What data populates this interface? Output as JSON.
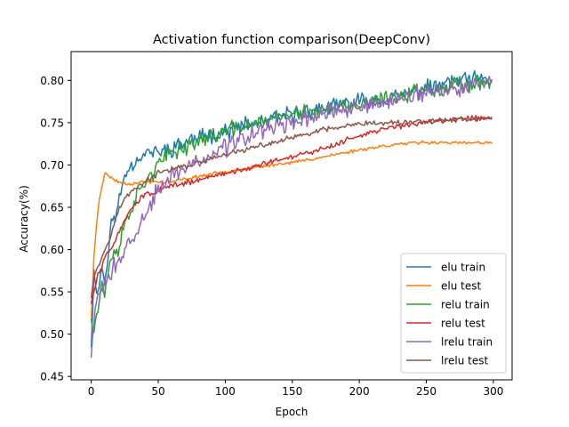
{
  "chart_data": {
    "type": "line",
    "title": "Activation function comparison(DeepConv)",
    "xlabel": "Epoch",
    "ylabel": "Accuracy(%)",
    "xlim": [
      -15,
      314
    ],
    "ylim": [
      0.446,
      0.834
    ],
    "xticks": [
      0,
      50,
      100,
      150,
      200,
      250,
      300
    ],
    "yticks": [
      0.45,
      0.5,
      0.55,
      0.6,
      0.65,
      0.7,
      0.75,
      0.8
    ],
    "ytick_labels": [
      "0.45",
      "0.50",
      "0.55",
      "0.60",
      "0.65",
      "0.70",
      "0.75",
      "0.80"
    ],
    "grid": false,
    "legend_position": "lower-right",
    "epochs": 300,
    "series": [
      {
        "name": "elu train",
        "color": "#1f77b4",
        "x": [
          0,
          2,
          5,
          8,
          10,
          15,
          20,
          25,
          30,
          40,
          50,
          60,
          75,
          100,
          125,
          150,
          175,
          200,
          225,
          250,
          275,
          299
        ],
        "y": [
          0.49,
          0.57,
          0.55,
          0.58,
          0.56,
          0.63,
          0.65,
          0.69,
          0.7,
          0.715,
          0.715,
          0.72,
          0.73,
          0.74,
          0.75,
          0.76,
          0.767,
          0.775,
          0.78,
          0.79,
          0.8,
          0.8
        ],
        "noise": 0.012,
        "seed": 11
      },
      {
        "name": "elu test",
        "color": "#ff7f0e",
        "x": [
          0,
          2,
          4,
          6,
          8,
          10,
          15,
          20,
          25,
          30,
          40,
          50,
          60,
          75,
          100,
          125,
          150,
          175,
          200,
          225,
          250,
          275,
          299
        ],
        "y": [
          0.52,
          0.59,
          0.63,
          0.66,
          0.675,
          0.69,
          0.685,
          0.68,
          0.678,
          0.678,
          0.68,
          0.68,
          0.68,
          0.685,
          0.692,
          0.698,
          0.703,
          0.71,
          0.718,
          0.724,
          0.727,
          0.726,
          0.726
        ],
        "noise": 0.0025,
        "seed": 23
      },
      {
        "name": "relu train",
        "color": "#2ca02c",
        "x": [
          0,
          2,
          5,
          8,
          10,
          15,
          20,
          25,
          30,
          40,
          50,
          60,
          75,
          100,
          125,
          150,
          175,
          200,
          225,
          250,
          275,
          299
        ],
        "y": [
          0.52,
          0.51,
          0.53,
          0.56,
          0.55,
          0.59,
          0.6,
          0.63,
          0.65,
          0.68,
          0.7,
          0.715,
          0.725,
          0.74,
          0.75,
          0.76,
          0.765,
          0.77,
          0.78,
          0.79,
          0.795,
          0.8
        ],
        "noise": 0.012,
        "seed": 37
      },
      {
        "name": "relu test",
        "color": "#d62728",
        "x": [
          0,
          2,
          5,
          8,
          10,
          15,
          20,
          25,
          30,
          40,
          50,
          60,
          75,
          100,
          125,
          150,
          175,
          200,
          225,
          250,
          275,
          299
        ],
        "y": [
          0.535,
          0.55,
          0.57,
          0.58,
          0.59,
          0.6,
          0.62,
          0.635,
          0.65,
          0.665,
          0.67,
          0.675,
          0.68,
          0.69,
          0.7,
          0.71,
          0.72,
          0.735,
          0.745,
          0.75,
          0.755,
          0.756
        ],
        "noise": 0.004,
        "seed": 51
      },
      {
        "name": "lrelu train",
        "color": "#9467bd",
        "x": [
          0,
          2,
          5,
          8,
          10,
          15,
          20,
          25,
          30,
          40,
          50,
          60,
          75,
          100,
          125,
          150,
          175,
          200,
          225,
          250,
          275,
          299
        ],
        "y": [
          0.47,
          0.52,
          0.54,
          0.55,
          0.56,
          0.57,
          0.59,
          0.6,
          0.61,
          0.64,
          0.67,
          0.69,
          0.7,
          0.72,
          0.74,
          0.75,
          0.76,
          0.77,
          0.775,
          0.785,
          0.79,
          0.8
        ],
        "noise": 0.013,
        "seed": 73
      },
      {
        "name": "lrelu test",
        "color": "#8c564b",
        "x": [
          0,
          2,
          5,
          8,
          10,
          15,
          20,
          25,
          30,
          40,
          50,
          60,
          75,
          100,
          125,
          150,
          175,
          200,
          225,
          250,
          275,
          299
        ],
        "y": [
          0.545,
          0.57,
          0.58,
          0.59,
          0.6,
          0.62,
          0.645,
          0.66,
          0.67,
          0.68,
          0.69,
          0.695,
          0.7,
          0.712,
          0.722,
          0.732,
          0.742,
          0.748,
          0.75,
          0.752,
          0.754,
          0.755
        ],
        "noise": 0.004,
        "seed": 97
      }
    ]
  }
}
